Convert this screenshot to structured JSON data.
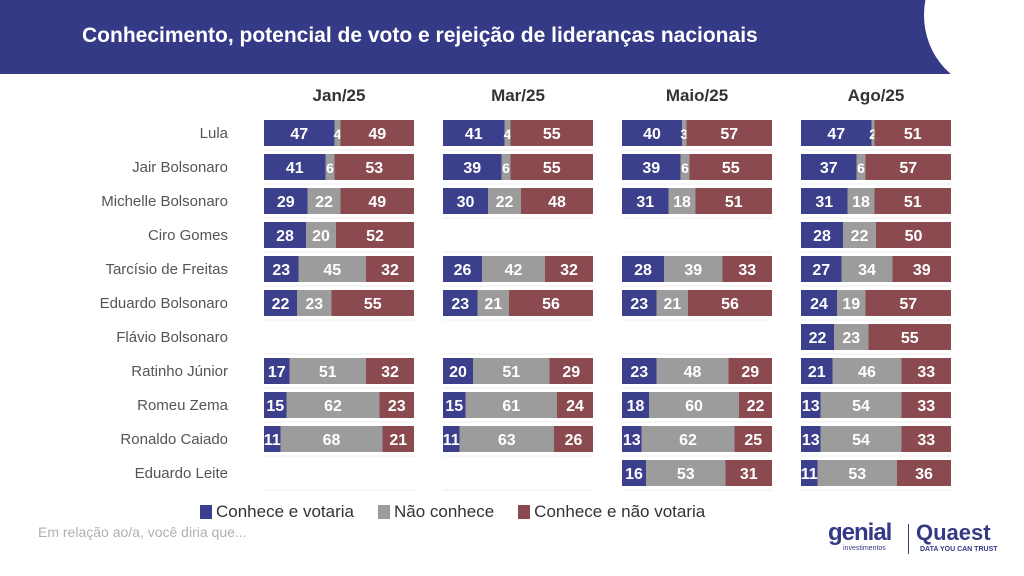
{
  "title": "Conhecimento, potencial de voto e rejeição de lideranças nacionais",
  "footnote": "Em relação ao/a, você diria que...",
  "logos": {
    "genial": "genial",
    "genial_sub": "investimentos",
    "quaest": "Quaest",
    "quaest_sub": "DATA YOU CAN TRUST"
  },
  "colors": {
    "header": "#353a86",
    "votaria": "#3b3f8c",
    "nao_conhece": "#9c9c9c",
    "nao_votaria": "#8a4a4f"
  },
  "chart_data": {
    "type": "bar",
    "stacked": true,
    "orientation": "horizontal",
    "categories": [
      "Lula",
      "Jair Bolsonaro",
      "Michelle Bolsonaro",
      "Ciro Gomes",
      "Tarcísio de Freitas",
      "Eduardo Bolsonaro",
      "Flávio Bolsonaro",
      "Ratinho Júnior",
      "Romeu Zema",
      "Ronaldo Caiado",
      "Eduardo Leite"
    ],
    "segments": [
      "Conhece e votaria",
      "Não conhece",
      "Conhece e não votaria"
    ],
    "legend_position": "bottom",
    "panels": [
      {
        "period": "Jan/25",
        "rows": [
          [
            47,
            4,
            49
          ],
          [
            41,
            6,
            53
          ],
          [
            29,
            22,
            49
          ],
          [
            28,
            20,
            52
          ],
          [
            23,
            45,
            32
          ],
          [
            22,
            23,
            55
          ],
          null,
          [
            17,
            51,
            32
          ],
          [
            15,
            62,
            23
          ],
          [
            11,
            68,
            21
          ],
          null
        ]
      },
      {
        "period": "Mar/25",
        "rows": [
          [
            41,
            4,
            55
          ],
          [
            39,
            6,
            55
          ],
          [
            30,
            22,
            48
          ],
          null,
          [
            26,
            42,
            32
          ],
          [
            23,
            21,
            56
          ],
          null,
          [
            20,
            51,
            29
          ],
          [
            15,
            61,
            24
          ],
          [
            11,
            63,
            26
          ],
          null
        ]
      },
      {
        "period": "Maio/25",
        "rows": [
          [
            40,
            3,
            57
          ],
          [
            39,
            6,
            55
          ],
          [
            31,
            18,
            51
          ],
          null,
          [
            28,
            39,
            33
          ],
          [
            23,
            21,
            56
          ],
          null,
          [
            23,
            48,
            29
          ],
          [
            18,
            60,
            22
          ],
          [
            13,
            62,
            25
          ],
          [
            16,
            53,
            31
          ]
        ]
      },
      {
        "period": "Ago/25",
        "rows": [
          [
            47,
            2,
            51
          ],
          [
            37,
            6,
            57
          ],
          [
            31,
            18,
            51
          ],
          [
            28,
            22,
            50
          ],
          [
            27,
            34,
            39
          ],
          [
            24,
            19,
            57
          ],
          [
            22,
            23,
            55
          ],
          [
            21,
            46,
            33
          ],
          [
            13,
            54,
            33
          ],
          [
            13,
            54,
            33
          ],
          [
            11,
            53,
            36
          ]
        ]
      }
    ]
  }
}
